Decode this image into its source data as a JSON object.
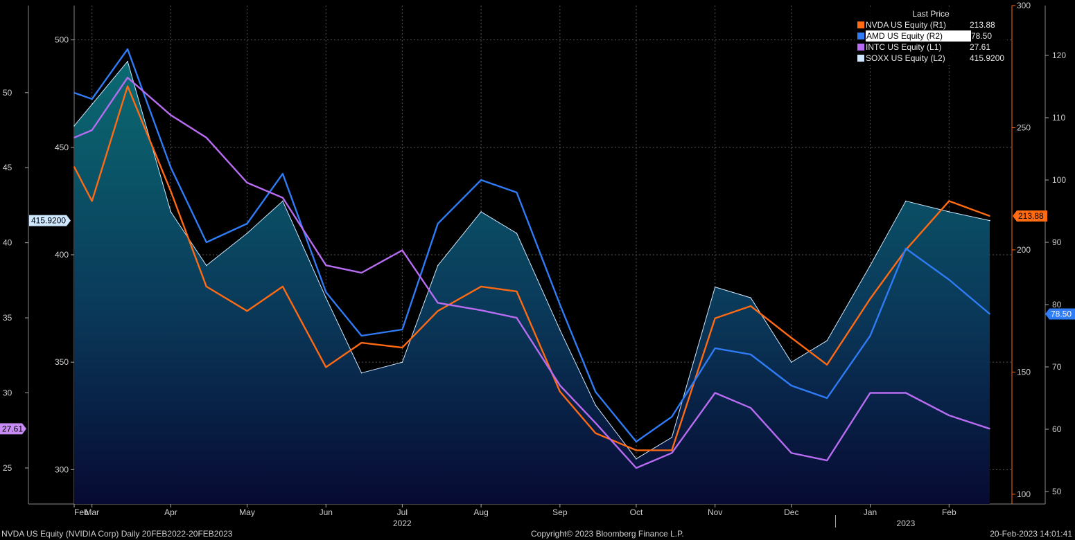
{
  "chart_data": {
    "type": "line",
    "title": "",
    "legend": {
      "title": "Last Price",
      "placement": "top-right",
      "entries": [
        {
          "name": "NVDA US Equity  (R1)",
          "value": "213.88",
          "color": "#ff6a13"
        },
        {
          "name": "AMD US Equity  (R2)",
          "value": "78.50",
          "color": "#2f7cf6"
        },
        {
          "name": "INTC US Equity  (L1)",
          "value": "27.61",
          "color": "#b86cf2"
        },
        {
          "name": "SOXX US Equity  (L2)",
          "value": "415.9200",
          "color": "#cfe8ff"
        }
      ]
    },
    "x": [
      "2022-02-22",
      "2022-03-01",
      "2022-03-15",
      "2022-04-01",
      "2022-04-15",
      "2022-05-01",
      "2022-05-15",
      "2022-06-01",
      "2022-06-15",
      "2022-07-01",
      "2022-07-15",
      "2022-08-01",
      "2022-08-15",
      "2022-09-01",
      "2022-09-15",
      "2022-10-01",
      "2022-10-15",
      "2022-11-01",
      "2022-11-15",
      "2022-12-01",
      "2022-12-15",
      "2023-01-01",
      "2023-01-15",
      "2023-02-01",
      "2023-02-17"
    ],
    "x_ticks": [
      {
        "label": "Feb",
        "date": "2022-02-22"
      },
      {
        "label": "Mar",
        "date": "2022-03-01"
      },
      {
        "label": "Apr",
        "date": "2022-04-01"
      },
      {
        "label": "May",
        "date": "2022-05-01"
      },
      {
        "label": "Jun",
        "date": "2022-06-01"
      },
      {
        "label": "Jul",
        "date": "2022-07-01"
      },
      {
        "label": "Aug",
        "date": "2022-08-01"
      },
      {
        "label": "Sep",
        "date": "2022-09-01"
      },
      {
        "label": "Oct",
        "date": "2022-10-01"
      },
      {
        "label": "Nov",
        "date": "2022-11-01"
      },
      {
        "label": "Dec",
        "date": "2022-12-01"
      },
      {
        "label": "Jan",
        "date": "2023-01-01"
      },
      {
        "label": "Feb",
        "date": "2023-02-01"
      }
    ],
    "year_labels": [
      {
        "label": "2022",
        "date": "2022-07-01"
      },
      {
        "label": "2023",
        "date": "2023-01-15"
      }
    ],
    "axes": {
      "L1": {
        "ticks": [
          25,
          30,
          35,
          40,
          45,
          50
        ],
        "range": [
          22.6,
          55.8
        ]
      },
      "L2": {
        "ticks": [
          300,
          350,
          400,
          450,
          500
        ],
        "range": [
          284,
          516
        ]
      },
      "R1": {
        "ticks": [
          100,
          150,
          200,
          250,
          300
        ],
        "range": [
          96,
          300
        ]
      },
      "R2": {
        "ticks": [
          50,
          60,
          70,
          80,
          90,
          100,
          110,
          120
        ],
        "range": [
          48,
          128
        ]
      }
    },
    "series": [
      {
        "name": "SOXX US Equity  (L2)",
        "axis": "L2",
        "color": "#cfe8ff",
        "area": true,
        "values": [
          460,
          470,
          490,
          420,
          395,
          410,
          425,
          380,
          345,
          350,
          395,
          420,
          410,
          365,
          330,
          305,
          315,
          385,
          380,
          350,
          360,
          395,
          425,
          420,
          415.92
        ]
      },
      {
        "name": "NVDA US Equity  (R1)",
        "axis": "R1",
        "color": "#ff6a13",
        "values": [
          234,
          220,
          267,
          224,
          185,
          175,
          185,
          152,
          162,
          160,
          175,
          185,
          183,
          142,
          125,
          118,
          118,
          172,
          177,
          164,
          153,
          180,
          200,
          220,
          213.88
        ]
      },
      {
        "name": "AMD US Equity  (R2)",
        "axis": "R2",
        "color": "#2f7cf6",
        "values": [
          114,
          113,
          121,
          102,
          90,
          93,
          101,
          82,
          75,
          76,
          93,
          100,
          98,
          80,
          66,
          58,
          62,
          73,
          72,
          67,
          65,
          75,
          89,
          84,
          78.5
        ]
      },
      {
        "name": "INTC US Equity  (L1)",
        "axis": "L1",
        "color": "#b86cf2",
        "values": [
          47,
          47.5,
          51,
          48.5,
          47,
          44,
          43,
          38.5,
          38,
          39.5,
          36,
          35.5,
          35,
          30.5,
          28,
          25,
          26,
          30,
          29,
          26,
          25.5,
          30,
          30,
          28.5,
          27.61
        ]
      }
    ],
    "last_value_tags": [
      {
        "axis": "L2",
        "value": 415.92,
        "text": "415.9200",
        "bg": "#cfe8ff",
        "fg": "#000000"
      },
      {
        "axis": "L1",
        "value": 27.61,
        "text": "27.61",
        "bg": "#c88af5",
        "fg": "#000000"
      },
      {
        "axis": "R1",
        "value": 213.88,
        "text": "213.88",
        "bg": "#ff6a13",
        "fg": "#000000"
      },
      {
        "axis": "R2",
        "value": 78.5,
        "text": "78.50",
        "bg": "#2f7cf6",
        "fg": "#ffffff"
      }
    ],
    "grid": true
  },
  "footer": {
    "left": "NVDA US Equity (NVIDIA Corp)  Daily 20FEB2022-20FEB2023",
    "center": "Copyright© 2023 Bloomberg Finance L.P.",
    "right": "20-Feb-2023 14:01:41"
  }
}
